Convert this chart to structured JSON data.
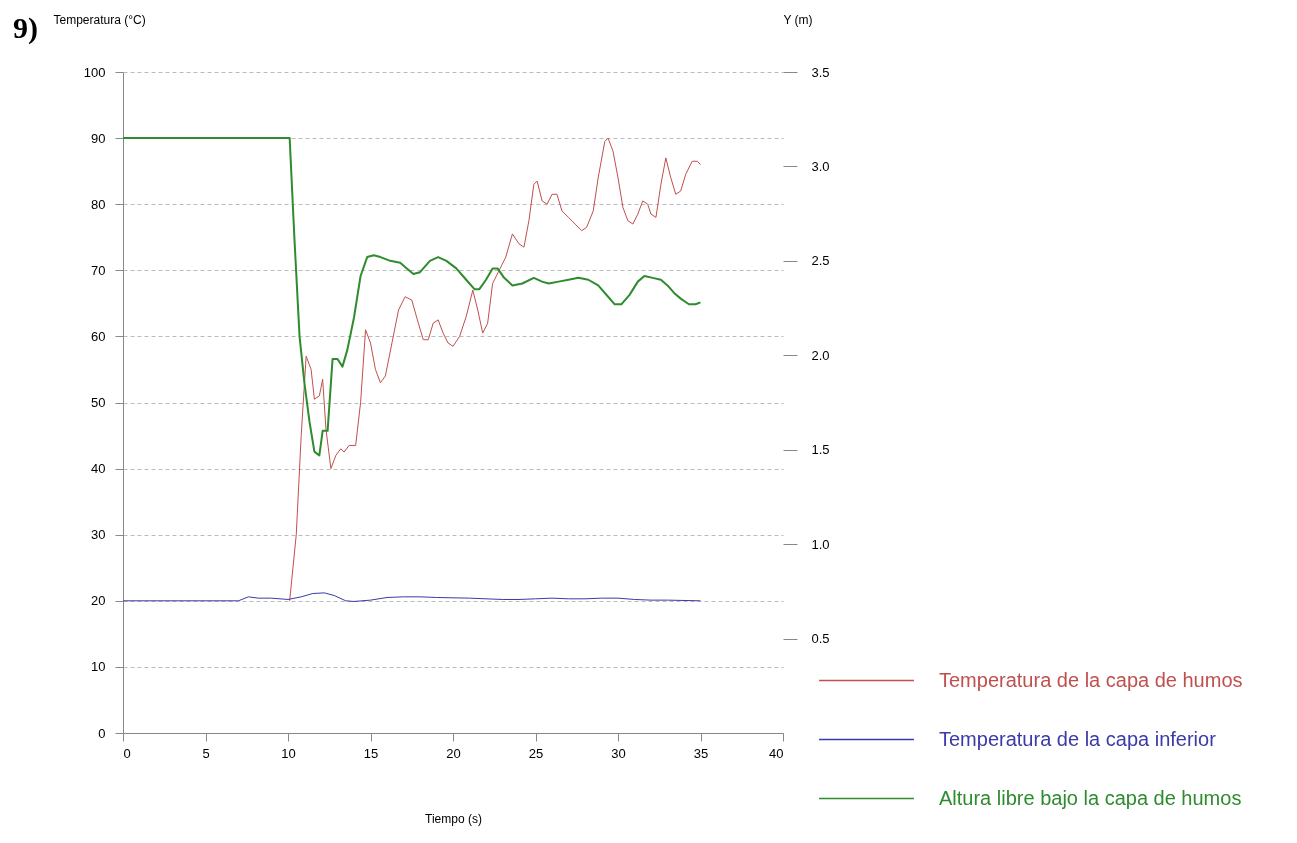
{
  "chart_data": {
    "type": "line",
    "xlabel": "Tiempo (s)",
    "ylabel": "Temperatura (°C)",
    "y2label": "Y (m)",
    "annotations": [
      "9)"
    ],
    "xlim": [
      0,
      40
    ],
    "xticks": [
      0,
      5,
      10,
      15,
      20,
      25,
      30,
      35,
      40
    ],
    "ylim": [
      0,
      100
    ],
    "yticks": [
      0,
      10,
      20,
      30,
      40,
      50,
      60,
      70,
      80,
      90,
      100
    ],
    "y2lim": [
      0,
      3.5
    ],
    "y2ticks": [
      {
        "value": 0.5,
        "label": "0.5"
      },
      {
        "value": 1,
        "label": "1.0"
      },
      {
        "value": 1.5,
        "label": "1.5"
      },
      {
        "value": 2,
        "label": "2.0"
      },
      {
        "value": 2.5,
        "label": "2.5"
      },
      {
        "value": 3,
        "label": "3.0"
      },
      {
        "value": 3.5,
        "label": "3.5"
      }
    ],
    "grid": "y",
    "legend": "bottom right",
    "marker": "none",
    "line_style": "solid",
    "series": [
      {
        "name": "Temperatura de la capa de humos",
        "color": "#c0504d",
        "x": [
          10.1,
          10.5,
          10.8,
          11.1,
          11.4,
          11.6,
          11.9,
          12.1,
          12.3,
          12.6,
          12.9,
          13.2,
          13.4,
          13.7,
          14.1,
          14.4,
          14.7,
          15,
          15.3,
          15.6,
          15.9,
          16.3,
          16.7,
          17.1,
          17.5,
          17.9,
          18.2,
          18.5,
          18.8,
          19.1,
          19.4,
          19.7,
          20,
          20.4,
          20.8,
          21.2,
          21.5,
          21.8,
          22.1,
          22.4,
          22.8,
          23.2,
          23.6,
          24,
          24.3,
          24.6,
          24.9,
          25.1,
          25.4,
          25.7,
          26,
          26.3,
          26.6,
          27,
          27.4,
          27.8,
          28.1,
          28.5,
          28.8,
          29.2,
          29.4,
          29.7,
          30,
          30.3,
          30.6,
          30.9,
          31.2,
          31.5,
          31.8,
          32,
          32.3,
          32.6,
          32.9,
          33.2,
          33.5,
          33.8,
          34.1,
          34.5,
          34.8,
          35
        ],
        "values": [
          20,
          30,
          45,
          57,
          55,
          50.5,
          51,
          53.5,
          46,
          40,
          42,
          43,
          42.5,
          43.5,
          43.5,
          50,
          61,
          59,
          55,
          53,
          54,
          59,
          64,
          66,
          65.5,
          62,
          59.5,
          59.5,
          62,
          62.5,
          60.5,
          59,
          58.5,
          60,
          63,
          67,
          64,
          60.5,
          62,
          68,
          70,
          72,
          75.5,
          74,
          73.5,
          77.5,
          83,
          83.5,
          80.5,
          80,
          81.5,
          81.5,
          79,
          78,
          77,
          76,
          76.5,
          79,
          84,
          89.5,
          90,
          88,
          84,
          79.5,
          77.5,
          77,
          78.5,
          80.5,
          80,
          78.5,
          78,
          83,
          87,
          84,
          81.5,
          82,
          84.5,
          86.5,
          86.5,
          86
        ]
      },
      {
        "name": "Temperatura de la capa inferior",
        "color": "#3a3aa8",
        "x": [
          0,
          7,
          7.6,
          8.2,
          9,
          10,
          10.8,
          11.5,
          12.2,
          12.8,
          13.5,
          14,
          15,
          16,
          17,
          18,
          19,
          21,
          23,
          24,
          25,
          26,
          27,
          28,
          29,
          30,
          31,
          32,
          33,
          35
        ],
        "values": [
          20,
          20,
          20.6,
          20.4,
          20.4,
          20.2,
          20.6,
          21.1,
          21.2,
          20.8,
          20,
          19.9,
          20.1,
          20.5,
          20.6,
          20.6,
          20.5,
          20.4,
          20.2,
          20.2,
          20.3,
          20.4,
          20.3,
          20.3,
          20.4,
          20.4,
          20.2,
          20.1,
          20.1,
          20
        ]
      },
      {
        "name": "Altura libre bajo la capa de humos",
        "color": "#2e8b2e",
        "axis": "y2",
        "x": [
          0,
          10.1,
          10.4,
          10.7,
          11,
          11.3,
          11.6,
          11.9,
          12.1,
          12.4,
          12.7,
          13,
          13.3,
          13.6,
          14,
          14.4,
          14.8,
          15.2,
          15.6,
          16.2,
          16.8,
          17.2,
          17.6,
          18,
          18.6,
          19.1,
          19.6,
          20.2,
          20.8,
          21.3,
          21.6,
          22,
          22.4,
          22.7,
          23.1,
          23.6,
          24.2,
          24.9,
          25.4,
          25.8,
          26.4,
          27,
          27.6,
          28.2,
          28.8,
          29.4,
          29.8,
          30.2,
          30.7,
          31.2,
          31.6,
          32.1,
          32.6,
          33,
          33.4,
          33.8,
          34.3,
          34.7,
          35
        ],
        "values": [
          3.15,
          3.15,
          2.6,
          2.1,
          1.85,
          1.65,
          1.49,
          1.47,
          1.6,
          1.6,
          1.98,
          1.98,
          1.94,
          2.03,
          2.2,
          2.42,
          2.52,
          2.53,
          2.52,
          2.5,
          2.49,
          2.46,
          2.43,
          2.44,
          2.5,
          2.52,
          2.5,
          2.46,
          2.4,
          2.35,
          2.35,
          2.4,
          2.46,
          2.46,
          2.41,
          2.37,
          2.38,
          2.41,
          2.39,
          2.38,
          2.39,
          2.4,
          2.41,
          2.4,
          2.37,
          2.31,
          2.27,
          2.27,
          2.32,
          2.39,
          2.42,
          2.41,
          2.4,
          2.37,
          2.33,
          2.3,
          2.27,
          2.27,
          2.28
        ]
      }
    ]
  }
}
